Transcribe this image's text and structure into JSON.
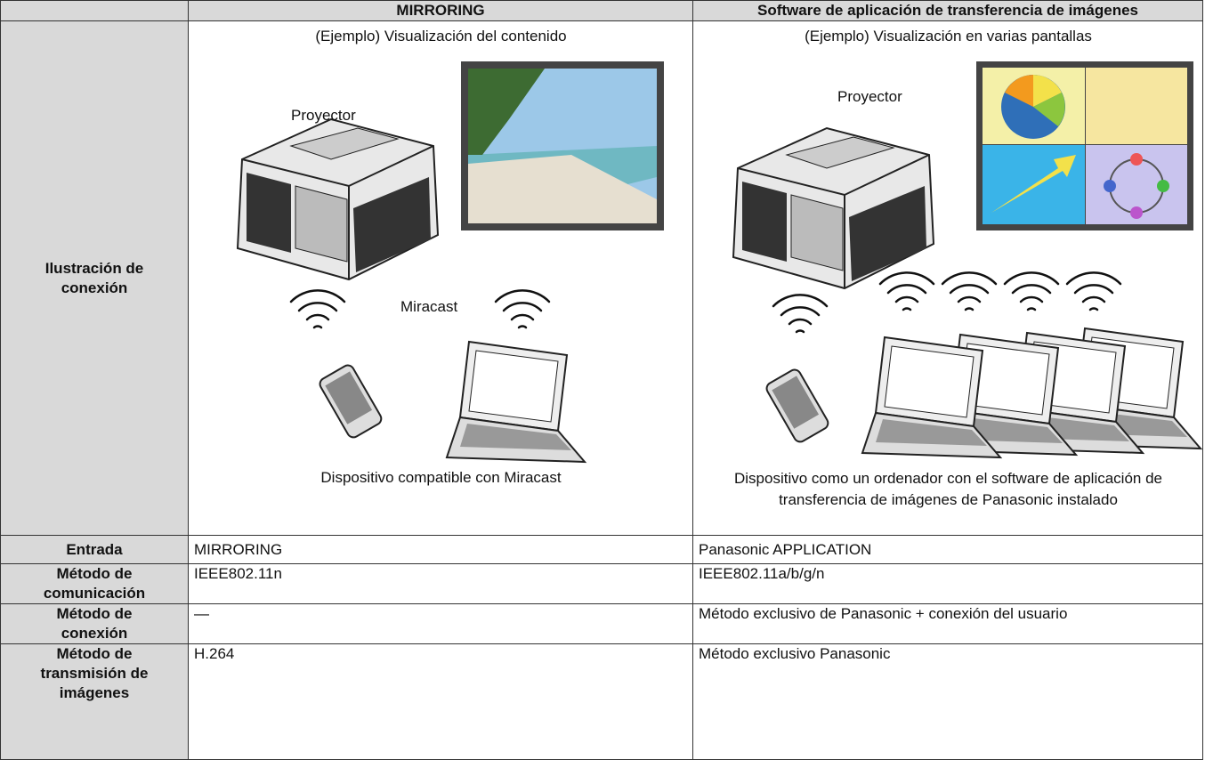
{
  "table": {
    "header": [
      "MIRRORING",
      "Software de aplicación de transferencia de imágenes"
    ],
    "illustration": {
      "label": "Ilustración de conexión",
      "mirroring": {
        "example": "(Ejemplo) Visualización del contenido",
        "projector": "Proyector",
        "protocol": "Miracast",
        "caption": "Dispositivo compatible con Miracast"
      },
      "software": {
        "example": "(Ejemplo) Visualización en varias pantallas",
        "projector": "Proyector",
        "caption": "Dispositivo como un ordenador con el software de aplicación de transferencia de imágenes de Panasonic instalado"
      }
    },
    "rows": [
      [
        "Entrada",
        "MIRRORING",
        "Panasonic APPLICATION"
      ],
      [
        "Método de comunicación",
        "IEEE802.11n",
        "IEEE802.11a/b/g/n"
      ],
      [
        "Método de conexión",
        "—",
        "Método exclusivo de Panasonic + conexión del usuario"
      ],
      [
        "Método de transmisión de imágenes",
        "H.264",
        "Método exclusivo Panasonic"
      ]
    ]
  }
}
